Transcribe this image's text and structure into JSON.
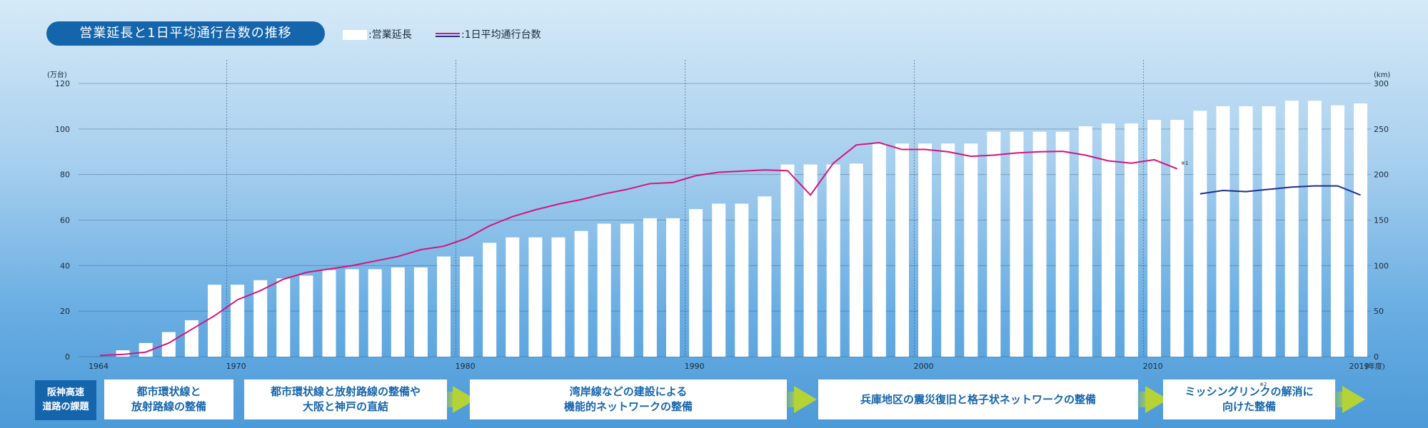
{
  "title": "営業延長と1日平均通行台数の推移",
  "legend": {
    "bars": ":営業延長",
    "line": ":1日平均通行台数"
  },
  "colors": {
    "bars": "#ffffff",
    "line_pre2011": "#d4147e",
    "line_post2011": "#1e2f8f",
    "title_bg": "#1565ad",
    "arrow": "#b5d334"
  },
  "chart_data": {
    "type": "bar+line",
    "left_axis": {
      "unit": "(万台)",
      "range": [
        0,
        120
      ],
      "ticks": [
        "0",
        "20",
        "40",
        "60",
        "80",
        "100",
        "120"
      ]
    },
    "right_axis": {
      "unit": "(km)",
      "range": [
        0,
        300
      ],
      "ticks": [
        "0",
        "50",
        "100",
        "150",
        "200",
        "250",
        "300"
      ]
    },
    "x_unit": "(年度)",
    "x_tick_labels": [
      "1964",
      "1970",
      "1980",
      "1990",
      "2000",
      "2010",
      "2019"
    ],
    "years": [
      1964,
      1965,
      1966,
      1967,
      1968,
      1969,
      1970,
      1971,
      1972,
      1973,
      1974,
      1975,
      1976,
      1977,
      1978,
      1979,
      1980,
      1981,
      1982,
      1983,
      1984,
      1985,
      1986,
      1987,
      1988,
      1989,
      1990,
      1991,
      1992,
      1993,
      1994,
      1995,
      1996,
      1997,
      1998,
      1999,
      2000,
      2001,
      2002,
      2003,
      2004,
      2005,
      2006,
      2007,
      2008,
      2009,
      2010,
      2011,
      2012,
      2013,
      2014,
      2015,
      2016,
      2017,
      2018,
      2019
    ],
    "series": [
      {
        "name": "営業延長",
        "kind": "bar",
        "axis": "right",
        "unit": "km",
        "values": [
          0,
          7,
          15,
          27,
          40,
          79,
          79,
          84,
          86,
          89,
          95,
          96,
          96,
          98,
          98,
          110,
          110,
          125,
          131,
          131,
          131,
          138,
          146,
          146,
          152,
          152,
          162,
          168,
          168,
          176,
          211,
          211,
          211,
          212,
          234,
          234,
          234,
          234,
          234,
          247,
          247,
          247,
          247,
          253,
          256,
          256,
          260,
          260,
          270,
          275,
          275,
          275,
          281,
          281,
          276,
          278
        ]
      },
      {
        "name": "1日平均通行台数",
        "kind": "line",
        "axis": "left",
        "unit": "万台",
        "values_pre2011": [
          0.5,
          1,
          2,
          6,
          12,
          18,
          25,
          29,
          34,
          37,
          38.5,
          40,
          42,
          44,
          47,
          48.5,
          52,
          57.5,
          61.5,
          64.5,
          67,
          69,
          71.5,
          73.5,
          76,
          76.5,
          79.5,
          81,
          81.5,
          82,
          81.7,
          71,
          85,
          93,
          94,
          91,
          91,
          90,
          88,
          88.5,
          89.5,
          90,
          90.2,
          88.5,
          86,
          85,
          86.5,
          82.5
        ],
        "values_post2011": [
          71.5,
          73,
          72.5,
          73.5,
          74.5,
          75,
          75,
          71
        ],
        "post2011_start_year": 2012
      }
    ],
    "notes": [
      "※1",
      "※2"
    ]
  },
  "issues": {
    "label": "阪神高速\n道路の課題",
    "items": [
      "都市環状線と\n放射路線の整備",
      "都市環状線と放射路線の整備や\n大阪と神戸の直結",
      "湾岸線などの建設による\n機能的ネットワークの整備",
      "兵庫地区の震災復旧と格子状ネットワークの整備",
      "ミッシングリンクの解消に\n向けた整備"
    ]
  }
}
